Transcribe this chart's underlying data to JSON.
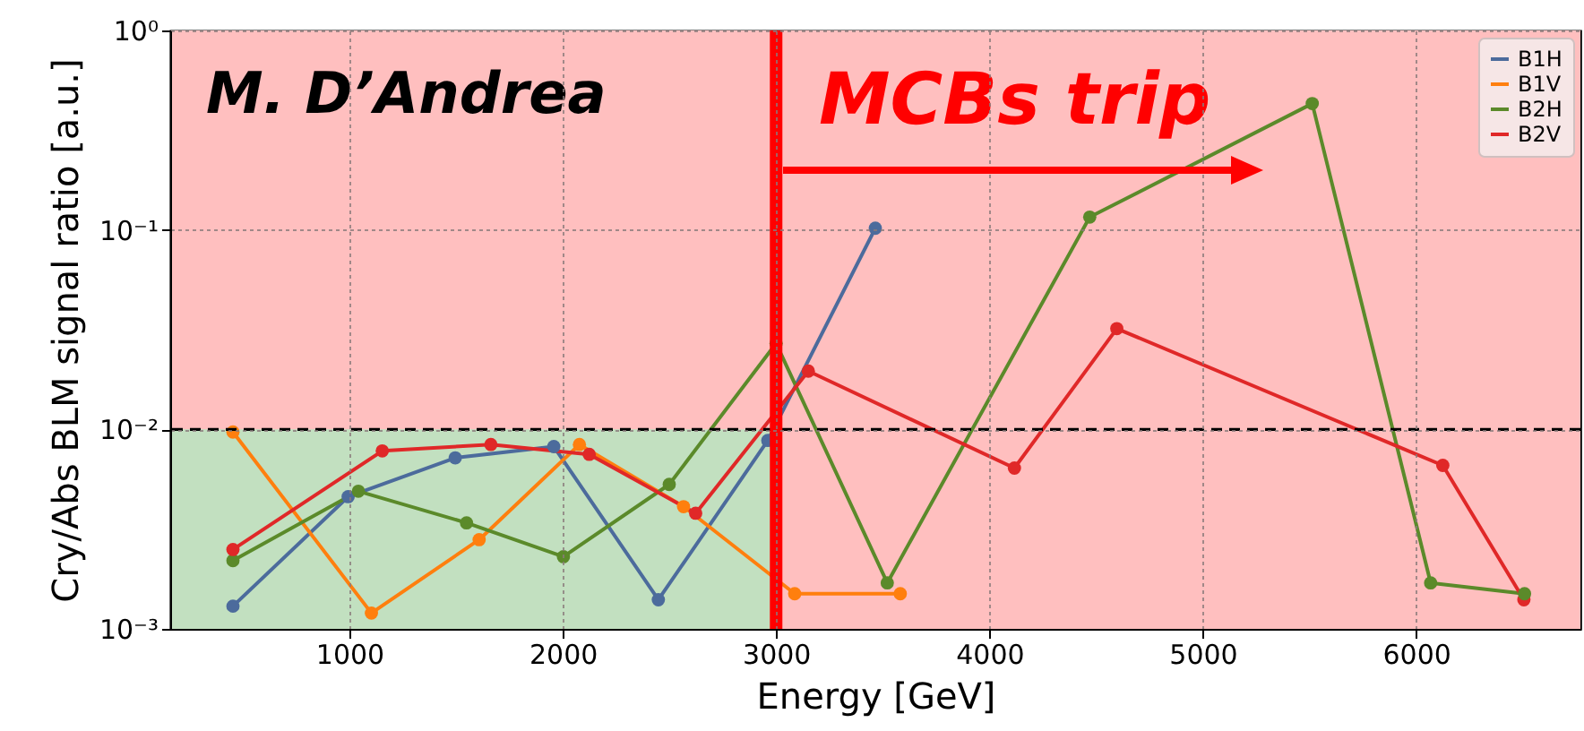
{
  "chart_data": {
    "type": "line",
    "xlabel": "Energy [GeV]",
    "ylabel": "Cry/Abs BLM signal ratio [a.u.]",
    "xlim": [
      160,
      6770
    ],
    "xticks": [
      1000,
      2000,
      3000,
      4000,
      5000,
      6000
    ],
    "ylim": [
      0.001,
      1
    ],
    "yticks": [
      {
        "value": 1,
        "label": "10⁰"
      },
      {
        "value": 0.1,
        "label": "10⁻¹"
      },
      {
        "value": 0.01,
        "label": "10⁻²"
      },
      {
        "value": 0.001,
        "label": "10⁻³"
      }
    ],
    "log": "y",
    "grid": true,
    "legend": "top right",
    "marker": "circle",
    "series": [
      {
        "name": "B1H",
        "color": "#4c6b9c",
        "x": [
          454,
          994,
          1496,
          1958,
          2448,
          2961,
          3465
        ],
        "values": [
          0.0013,
          0.0046,
          0.0072,
          0.0082,
          0.0014,
          0.0088,
          0.102
        ]
      },
      {
        "name": "B1V",
        "color": "#ff7f0e",
        "x": [
          454,
          1103,
          1608,
          2078,
          2566,
          3087,
          3582
        ],
        "values": [
          0.0097,
          0.0012,
          0.0028,
          0.0084,
          0.0041,
          0.0015,
          0.0015
        ]
      },
      {
        "name": "B2H",
        "color": "#5b8a2a",
        "x": [
          454,
          1042,
          1549,
          2003,
          2499,
          3000,
          3521,
          4470,
          5513,
          6068,
          6508
        ],
        "values": [
          0.0022,
          0.0049,
          0.0034,
          0.0023,
          0.0053,
          0.027,
          0.0017,
          0.116,
          0.43,
          0.0017,
          0.0015
        ]
      },
      {
        "name": "B2V",
        "color": "#e02828",
        "x": [
          454,
          1154,
          1663,
          2124,
          2623,
          3151,
          4117,
          4597,
          6125,
          6505
        ],
        "values": [
          0.0025,
          0.0078,
          0.0084,
          0.0075,
          0.0038,
          0.0196,
          0.0064,
          0.032,
          0.0066,
          0.0014
        ]
      }
    ],
    "bands": [
      {
        "axis": "x",
        "from": 160,
        "to": 3000,
        "color": "#c2e0c0"
      },
      {
        "axis": "y",
        "from": 0.01,
        "to": 1,
        "color": "#ffbfbf"
      },
      {
        "axis": "x",
        "from": 3000,
        "to": 6770,
        "color": "#ffbfbf"
      }
    ],
    "ref_lines": [
      {
        "axis": "y",
        "value": 0.01,
        "color": "#000000",
        "line_style": "dashed"
      },
      {
        "axis": "x",
        "value": 3000,
        "color": "#ff0000",
        "line_style": "solid"
      }
    ],
    "annotations": [
      "M. D’Andrea",
      "MCBs trip"
    ]
  }
}
